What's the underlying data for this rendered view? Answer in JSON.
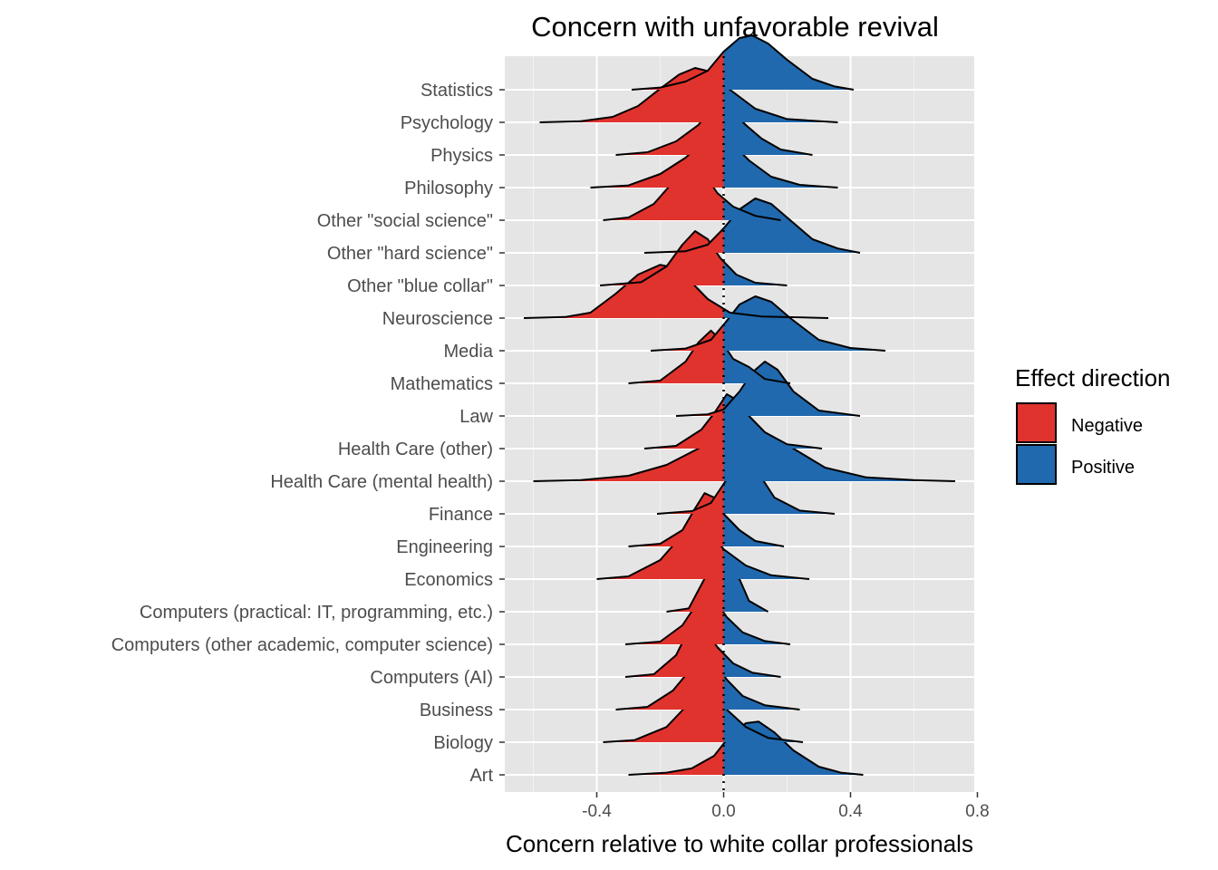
{
  "chart_data": {
    "type": "ridgeline",
    "title": "Concern with unfavorable revival",
    "xlabel": "Concern relative to white collar professionals",
    "ylabel": "",
    "xlim": [
      -0.69,
      0.79
    ],
    "x_ticks": [
      -0.4,
      0.0,
      0.4,
      0.8
    ],
    "x_tick_labels": [
      "-0.4",
      "0.0",
      "0.4",
      "0.8"
    ],
    "reference_line": 0,
    "grid": true,
    "legend": {
      "title": "Effect direction",
      "position": "right",
      "entries": [
        {
          "label": "Negative",
          "color": "#E0332E"
        },
        {
          "label": "Positive",
          "color": "#2169AE"
        }
      ]
    },
    "categories": [
      {
        "name": "Statistics",
        "density": [
          [
            -0.29,
            0.0
          ],
          [
            -0.2,
            0.04
          ],
          [
            -0.12,
            0.15
          ],
          [
            -0.05,
            0.35
          ],
          [
            0.0,
            0.7
          ],
          [
            0.05,
            0.95
          ],
          [
            0.09,
            1.0
          ],
          [
            0.14,
            0.85
          ],
          [
            0.2,
            0.55
          ],
          [
            0.28,
            0.2
          ],
          [
            0.35,
            0.06
          ],
          [
            0.41,
            0.0
          ]
        ]
      },
      {
        "name": "Psychology",
        "density": [
          [
            -0.58,
            0.0
          ],
          [
            -0.45,
            0.02
          ],
          [
            -0.35,
            0.1
          ],
          [
            -0.27,
            0.3
          ],
          [
            -0.2,
            0.62
          ],
          [
            -0.14,
            0.88
          ],
          [
            -0.09,
            1.0
          ],
          [
            -0.04,
            0.93
          ],
          [
            0.02,
            0.6
          ],
          [
            0.1,
            0.25
          ],
          [
            0.2,
            0.06
          ],
          [
            0.36,
            0.0
          ]
        ]
      },
      {
        "name": "Physics",
        "density": [
          [
            -0.34,
            0.0
          ],
          [
            -0.24,
            0.05
          ],
          [
            -0.15,
            0.25
          ],
          [
            -0.08,
            0.55
          ],
          [
            -0.03,
            0.9
          ],
          [
            -0.01,
            1.0
          ],
          [
            0.02,
            0.85
          ],
          [
            0.07,
            0.55
          ],
          [
            0.12,
            0.3
          ],
          [
            0.18,
            0.1
          ],
          [
            0.28,
            0.0
          ]
        ]
      },
      {
        "name": "Philosophy",
        "density": [
          [
            -0.42,
            0.0
          ],
          [
            -0.3,
            0.04
          ],
          [
            -0.2,
            0.25
          ],
          [
            -0.12,
            0.55
          ],
          [
            -0.05,
            0.92
          ],
          [
            -0.03,
            1.0
          ],
          [
            0.02,
            0.85
          ],
          [
            0.08,
            0.5
          ],
          [
            0.15,
            0.2
          ],
          [
            0.24,
            0.05
          ],
          [
            0.36,
            0.0
          ]
        ]
      },
      {
        "name": "Other \"social science\"",
        "density": [
          [
            -0.38,
            0.0
          ],
          [
            -0.3,
            0.05
          ],
          [
            -0.22,
            0.3
          ],
          [
            -0.16,
            0.7
          ],
          [
            -0.11,
            1.0
          ],
          [
            -0.06,
            0.85
          ],
          [
            -0.02,
            0.5
          ],
          [
            0.03,
            0.25
          ],
          [
            0.1,
            0.08
          ],
          [
            0.18,
            0.0
          ]
        ]
      },
      {
        "name": "Other \"hard science\"",
        "density": [
          [
            -0.25,
            0.0
          ],
          [
            -0.12,
            0.03
          ],
          [
            -0.05,
            0.15
          ],
          [
            0.0,
            0.45
          ],
          [
            0.05,
            0.8
          ],
          [
            0.1,
            1.0
          ],
          [
            0.15,
            0.9
          ],
          [
            0.21,
            0.6
          ],
          [
            0.28,
            0.25
          ],
          [
            0.36,
            0.08
          ],
          [
            0.43,
            0.0
          ]
        ]
      },
      {
        "name": "Other \"blue collar\"",
        "density": [
          [
            -0.39,
            0.0
          ],
          [
            -0.26,
            0.06
          ],
          [
            -0.18,
            0.35
          ],
          [
            -0.13,
            0.75
          ],
          [
            -0.09,
            1.0
          ],
          [
            -0.05,
            0.85
          ],
          [
            -0.01,
            0.5
          ],
          [
            0.04,
            0.2
          ],
          [
            0.1,
            0.05
          ],
          [
            0.2,
            0.0
          ]
        ]
      },
      {
        "name": "Neuroscience",
        "density": [
          [
            -0.63,
            0.0
          ],
          [
            -0.5,
            0.02
          ],
          [
            -0.42,
            0.1
          ],
          [
            -0.34,
            0.45
          ],
          [
            -0.27,
            0.8
          ],
          [
            -0.2,
            0.98
          ],
          [
            -0.15,
            0.92
          ],
          [
            -0.1,
            0.65
          ],
          [
            -0.05,
            0.35
          ],
          [
            0.02,
            0.1
          ],
          [
            0.12,
            0.03
          ],
          [
            0.33,
            0.0
          ]
        ]
      },
      {
        "name": "Media",
        "density": [
          [
            -0.23,
            0.0
          ],
          [
            -0.12,
            0.04
          ],
          [
            -0.04,
            0.2
          ],
          [
            0.01,
            0.55
          ],
          [
            0.05,
            0.85
          ],
          [
            0.1,
            1.0
          ],
          [
            0.15,
            0.9
          ],
          [
            0.21,
            0.6
          ],
          [
            0.3,
            0.2
          ],
          [
            0.4,
            0.05
          ],
          [
            0.51,
            0.0
          ]
        ]
      },
      {
        "name": "Mathematics",
        "density": [
          [
            -0.3,
            0.0
          ],
          [
            -0.2,
            0.05
          ],
          [
            -0.12,
            0.4
          ],
          [
            -0.08,
            0.75
          ],
          [
            -0.04,
            0.97
          ],
          [
            -0.01,
            0.8
          ],
          [
            0.03,
            0.45
          ],
          [
            0.08,
            0.3
          ],
          [
            0.13,
            0.08
          ],
          [
            0.21,
            0.0
          ]
        ]
      },
      {
        "name": "Law",
        "density": [
          [
            -0.15,
            0.0
          ],
          [
            -0.05,
            0.03
          ],
          [
            0.0,
            0.12
          ],
          [
            0.05,
            0.45
          ],
          [
            0.09,
            0.8
          ],
          [
            0.13,
            1.0
          ],
          [
            0.17,
            0.85
          ],
          [
            0.22,
            0.45
          ],
          [
            0.3,
            0.1
          ],
          [
            0.43,
            0.0
          ]
        ]
      },
      {
        "name": "Health Care (other)",
        "density": [
          [
            -0.25,
            0.0
          ],
          [
            -0.15,
            0.05
          ],
          [
            -0.07,
            0.35
          ],
          [
            -0.03,
            0.65
          ],
          [
            0.01,
            1.0
          ],
          [
            0.04,
            0.9
          ],
          [
            0.08,
            0.6
          ],
          [
            0.13,
            0.3
          ],
          [
            0.2,
            0.08
          ],
          [
            0.31,
            0.0
          ]
        ]
      },
      {
        "name": "Health Care (mental health)",
        "density": [
          [
            -0.6,
            0.0
          ],
          [
            -0.45,
            0.02
          ],
          [
            -0.3,
            0.1
          ],
          [
            -0.18,
            0.3
          ],
          [
            -0.08,
            0.6
          ],
          [
            0.0,
            0.88
          ],
          [
            0.06,
            0.98
          ],
          [
            0.13,
            0.9
          ],
          [
            0.22,
            0.6
          ],
          [
            0.32,
            0.25
          ],
          [
            0.45,
            0.07
          ],
          [
            0.6,
            0.02
          ],
          [
            0.73,
            0.0
          ]
        ]
      },
      {
        "name": "Finance",
        "density": [
          [
            -0.21,
            0.0
          ],
          [
            -0.1,
            0.05
          ],
          [
            -0.04,
            0.2
          ],
          [
            0.0,
            0.55
          ],
          [
            0.03,
            0.8
          ],
          [
            0.07,
            1.0
          ],
          [
            0.11,
            0.75
          ],
          [
            0.16,
            0.3
          ],
          [
            0.24,
            0.06
          ],
          [
            0.35,
            0.0
          ]
        ]
      },
      {
        "name": "Engineering",
        "density": [
          [
            -0.3,
            0.0
          ],
          [
            -0.2,
            0.05
          ],
          [
            -0.13,
            0.3
          ],
          [
            -0.09,
            0.7
          ],
          [
            -0.06,
            0.98
          ],
          [
            -0.03,
            0.9
          ],
          [
            0.0,
            0.6
          ],
          [
            0.05,
            0.3
          ],
          [
            0.1,
            0.1
          ],
          [
            0.19,
            0.0
          ]
        ]
      },
      {
        "name": "Economics",
        "density": [
          [
            -0.4,
            0.0
          ],
          [
            -0.3,
            0.05
          ],
          [
            -0.2,
            0.35
          ],
          [
            -0.14,
            0.75
          ],
          [
            -0.09,
            1.0
          ],
          [
            -0.04,
            0.85
          ],
          [
            0.0,
            0.55
          ],
          [
            0.07,
            0.25
          ],
          [
            0.15,
            0.07
          ],
          [
            0.27,
            0.0
          ]
        ]
      },
      {
        "name": "Computers (practical: IT, programming, etc.)",
        "density": [
          [
            -0.18,
            0.0
          ],
          [
            -0.11,
            0.06
          ],
          [
            -0.07,
            0.5
          ],
          [
            -0.03,
            0.95
          ],
          [
            0.0,
            1.0
          ],
          [
            0.02,
            0.7
          ],
          [
            0.05,
            0.6
          ],
          [
            0.08,
            0.2
          ],
          [
            0.14,
            0.0
          ]
        ]
      },
      {
        "name": "Computers (other academic, computer science)",
        "density": [
          [
            -0.31,
            0.0
          ],
          [
            -0.2,
            0.05
          ],
          [
            -0.13,
            0.35
          ],
          [
            -0.09,
            0.7
          ],
          [
            -0.06,
            0.98
          ],
          [
            -0.03,
            0.85
          ],
          [
            0.01,
            0.5
          ],
          [
            0.06,
            0.22
          ],
          [
            0.13,
            0.06
          ],
          [
            0.21,
            0.0
          ]
        ]
      },
      {
        "name": "Computers (AI)",
        "density": [
          [
            -0.31,
            0.0
          ],
          [
            -0.22,
            0.05
          ],
          [
            -0.15,
            0.4
          ],
          [
            -0.12,
            0.75
          ],
          [
            -0.09,
            1.0
          ],
          [
            -0.06,
            0.9
          ],
          [
            -0.02,
            0.55
          ],
          [
            0.03,
            0.25
          ],
          [
            0.09,
            0.08
          ],
          [
            0.18,
            0.0
          ]
        ]
      },
      {
        "name": "Business",
        "density": [
          [
            -0.34,
            0.0
          ],
          [
            -0.24,
            0.05
          ],
          [
            -0.16,
            0.35
          ],
          [
            -0.11,
            0.7
          ],
          [
            -0.07,
            0.95
          ],
          [
            -0.03,
            0.88
          ],
          [
            0.01,
            0.55
          ],
          [
            0.06,
            0.25
          ],
          [
            0.13,
            0.08
          ],
          [
            0.24,
            0.0
          ]
        ]
      },
      {
        "name": "Biology",
        "density": [
          [
            -0.38,
            0.0
          ],
          [
            -0.28,
            0.04
          ],
          [
            -0.18,
            0.28
          ],
          [
            -0.12,
            0.65
          ],
          [
            -0.07,
            0.98
          ],
          [
            -0.03,
            0.9
          ],
          [
            0.01,
            0.6
          ],
          [
            0.07,
            0.28
          ],
          [
            0.14,
            0.08
          ],
          [
            0.25,
            0.0
          ]
        ]
      },
      {
        "name": "Art",
        "density": [
          [
            -0.3,
            0.0
          ],
          [
            -0.18,
            0.04
          ],
          [
            -0.1,
            0.12
          ],
          [
            -0.03,
            0.35
          ],
          [
            0.02,
            0.72
          ],
          [
            0.07,
            0.95
          ],
          [
            0.11,
            0.98
          ],
          [
            0.16,
            0.78
          ],
          [
            0.22,
            0.45
          ],
          [
            0.3,
            0.15
          ],
          [
            0.37,
            0.04
          ],
          [
            0.44,
            0.0
          ]
        ]
      }
    ]
  }
}
